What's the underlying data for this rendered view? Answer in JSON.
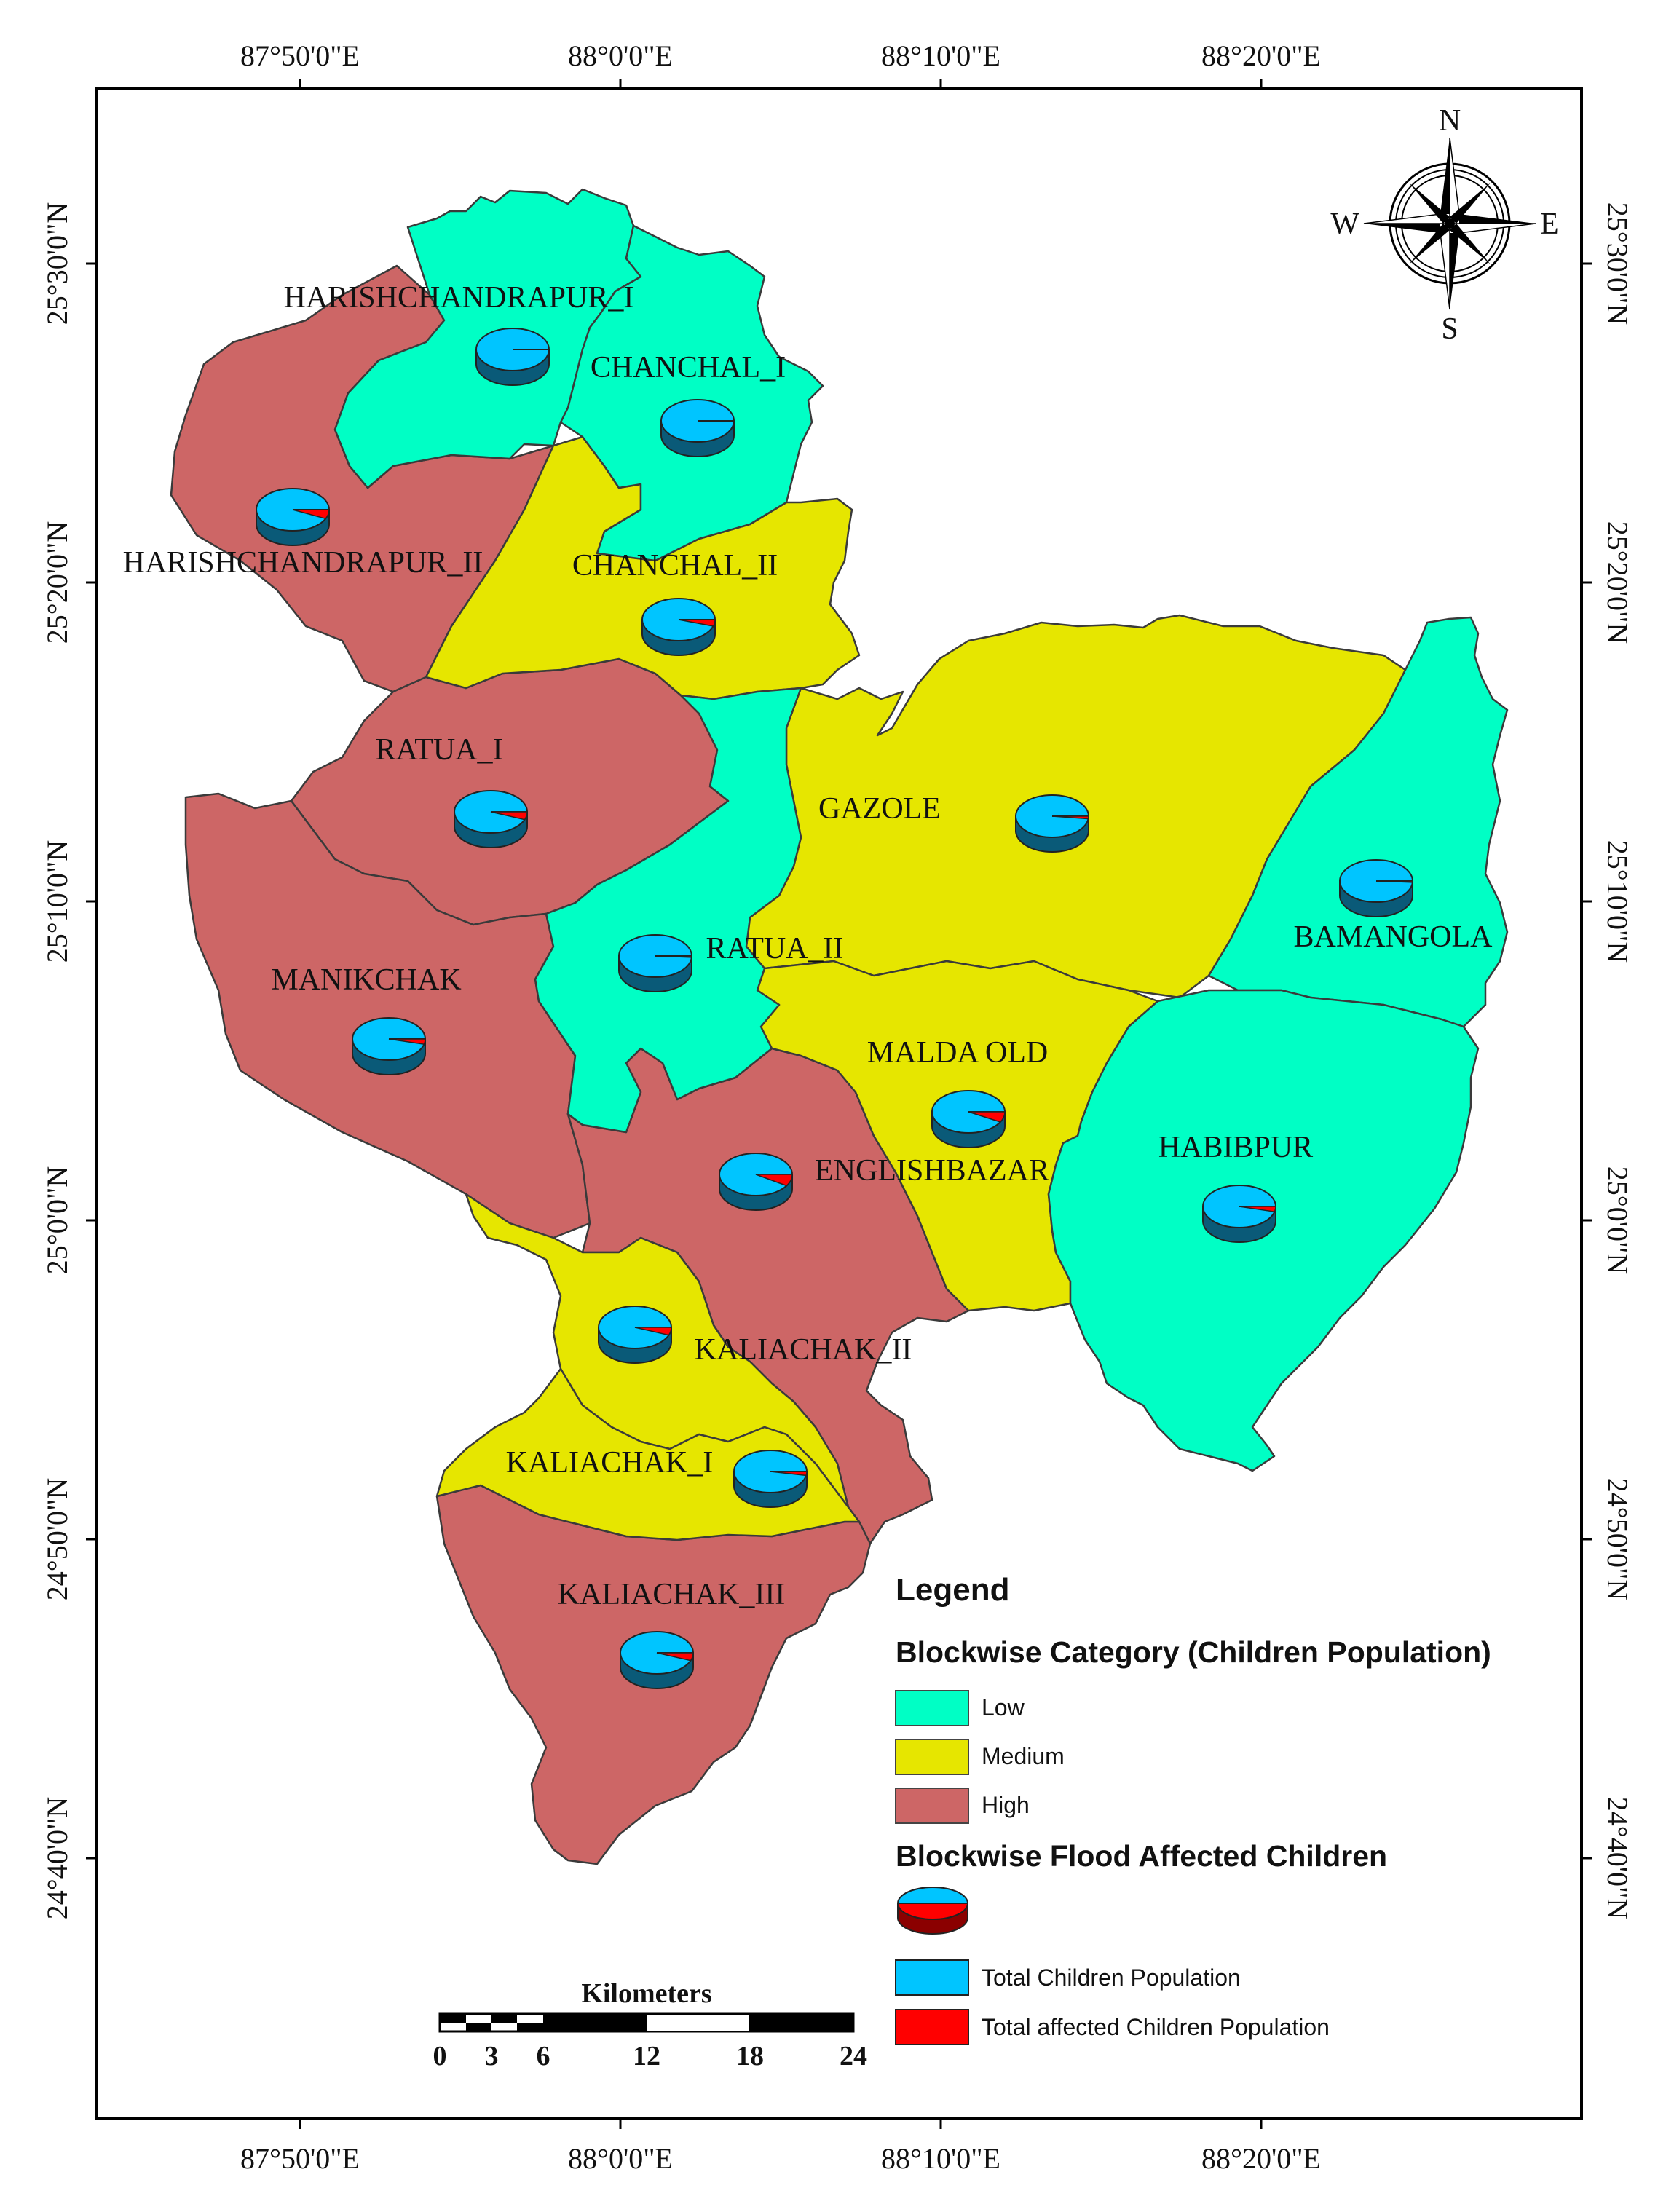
{
  "map": {
    "lon_labels": [
      "87°50'0\"E",
      "88°0'0\"E",
      "88°10'0\"E",
      "88°20'0\"E"
    ],
    "lat_labels": [
      "25°30'0\"N",
      "25°20'0\"N",
      "25°10'0\"N",
      "25°0'0\"N",
      "24°50'0\"N",
      "24°40'0\"N"
    ],
    "compass": {
      "n": "N",
      "s": "S",
      "e": "E",
      "w": "W"
    },
    "colors": {
      "low": "#00FFC5",
      "medium": "#E6E600",
      "high": "#CD6666",
      "total": "#00C5FF",
      "affected": "#FF0000"
    },
    "blocks": [
      {
        "name": "HARISHCHANDRAPUR_I",
        "category": "Low",
        "affected_fraction": 0.0
      },
      {
        "name": "CHANCHAL_I",
        "category": "Low",
        "affected_fraction": 0.0
      },
      {
        "name": "HARISHCHANDRAPUR_II",
        "category": "High",
        "affected_fraction": 0.07
      },
      {
        "name": "CHANCHAL_II",
        "category": "Medium",
        "affected_fraction": 0.05
      },
      {
        "name": "RATUA_I",
        "category": "High",
        "affected_fraction": 0.06
      },
      {
        "name": "GAZOLE",
        "category": "Medium",
        "affected_fraction": 0.02
      },
      {
        "name": "BAMANGOLA",
        "category": "Low",
        "affected_fraction": 0.01
      },
      {
        "name": "RATUA_II",
        "category": "Low",
        "affected_fraction": 0.01
      },
      {
        "name": "MANIKCHAK",
        "category": "High",
        "affected_fraction": 0.04
      },
      {
        "name": "MALDA OLD",
        "category": "Medium",
        "affected_fraction": 0.08
      },
      {
        "name": "ENGLISHBAZAR",
        "category": "High",
        "affected_fraction": 0.09
      },
      {
        "name": "HABIBPUR",
        "category": "Low",
        "affected_fraction": 0.04
      },
      {
        "name": "KALIACHAK_II",
        "category": "Medium",
        "affected_fraction": 0.06
      },
      {
        "name": "KALIACHAK_I",
        "category": "Medium",
        "affected_fraction": 0.03
      },
      {
        "name": "KALIACHAK_III",
        "category": "High",
        "affected_fraction": 0.06
      }
    ]
  },
  "legend": {
    "title": "Legend",
    "category_heading": "Blockwise Category (Children Population)",
    "categories": [
      "Low",
      "Medium",
      "High"
    ],
    "flood_heading": "Blockwise Flood Affected Children",
    "total_label": "Total Children Population",
    "affected_label": "Total affected Children Population"
  },
  "scale_bar": {
    "title": "Kilometers",
    "ticks": [
      "0",
      "3",
      "6",
      "12",
      "18",
      "24"
    ]
  }
}
